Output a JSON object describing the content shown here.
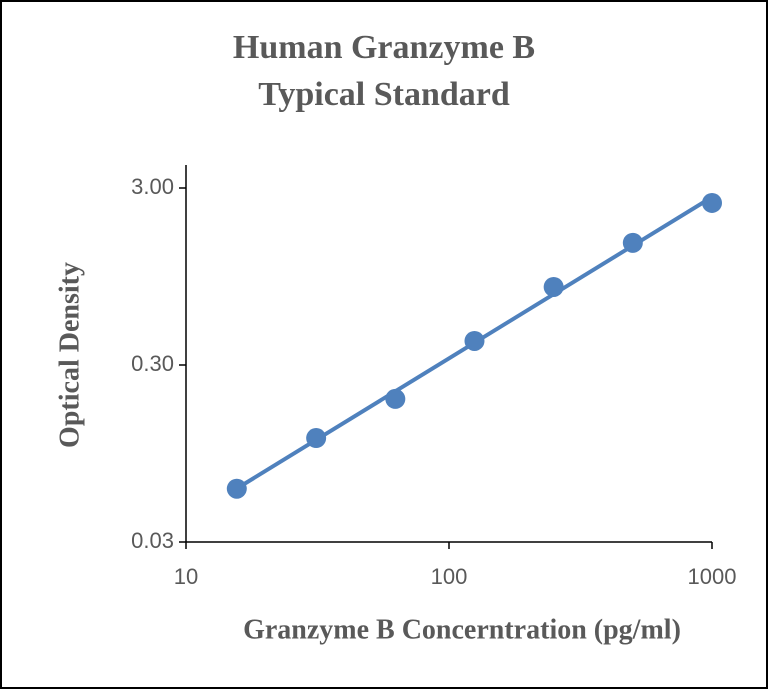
{
  "chart_data": {
    "type": "scatter",
    "title": [
      "Human Granzyme B",
      "Typical Standard"
    ],
    "x_label": "Granzyme B Concerntration (pg/ml)",
    "y_label": "Optical Density",
    "x": [
      15.6,
      31.25,
      62.5,
      125,
      250,
      500,
      1000
    ],
    "series": [
      {
        "color": "#4f81bd",
        "values": [
          0.06,
          0.116,
          0.193,
          0.41,
          0.828,
          1.47,
          2.47
        ]
      }
    ],
    "xscale": "log",
    "yscale": "log",
    "xlim": [
      10,
      1000
    ],
    "ylim": [
      0.03,
      3
    ],
    "xticks": [
      10,
      100,
      1000
    ],
    "yticks": [
      0.03,
      {
        "value": 0.3,
        "label": "0.30"
      },
      {
        "value": 3,
        "label": "3.00"
      }
    ],
    "trendline": "power",
    "grid": false
  }
}
